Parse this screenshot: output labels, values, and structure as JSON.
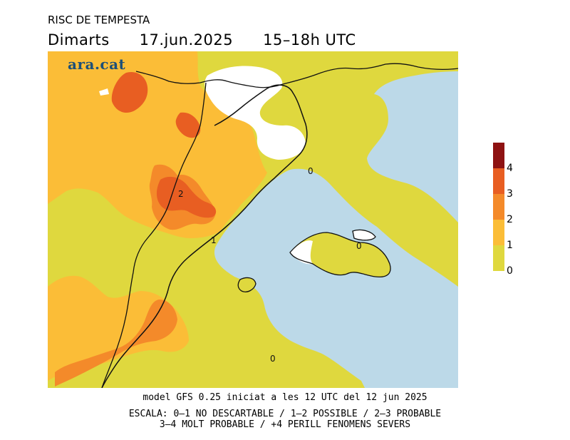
{
  "header": {
    "title": "RISC DE TEMPESTA",
    "day": "Dimarts",
    "date": "17.jun.2025",
    "time": "15–18h UTC"
  },
  "map": {
    "brand": "ara.cat",
    "contour_labels": [
      "0",
      "0",
      "0",
      "1",
      "2"
    ],
    "colors": {
      "sea": "#bcd9e8",
      "level_0_1": "#dfd83e",
      "level_1_2": "#fbbd37",
      "level_2_3": "#f48a2a",
      "level_3_4": "#e85e22",
      "level_4_plus": "#8e1212",
      "no_data": "#ffffff"
    }
  },
  "legend": {
    "ticks": [
      "4",
      "3",
      "2",
      "1",
      "0"
    ]
  },
  "footer": {
    "line1": "model GFS 0.25 iniciat a les 12 UTC del 12 jun 2025",
    "line2": "ESCALA: 0–1 NO DESCARTABLE / 1–2 POSSIBLE / 2–3 PROBABLE",
    "line3": "3–4 MOLT PROBABLE / +4 PERILL FENOMENS SEVERS"
  }
}
